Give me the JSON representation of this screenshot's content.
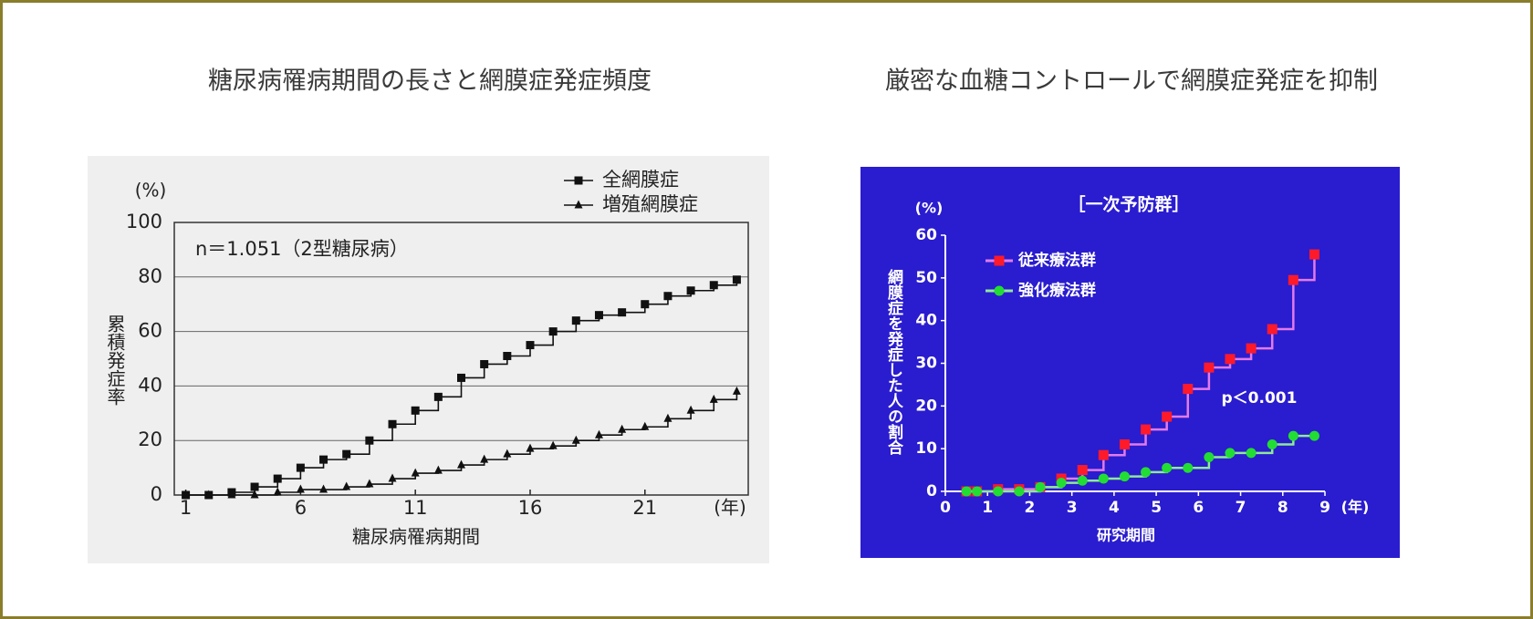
{
  "chart_data": [
    {
      "type": "step",
      "title": "糖尿病罹病期間の長さと網膜症発症頻度",
      "annotation": "n＝1.051（2型糖尿病）",
      "xlabel": "糖尿病罹病期間",
      "ylabel": "累積発症率",
      "x_unit": "(年)",
      "y_unit": "(%)",
      "x": [
        1,
        2,
        3,
        4,
        5,
        6,
        7,
        8,
        9,
        10,
        11,
        12,
        13,
        14,
        15,
        16,
        17,
        18,
        19,
        20,
        21,
        22,
        23,
        24,
        25
      ],
      "xlim": [
        0.5,
        25.5
      ],
      "xticks": [
        1,
        6,
        11,
        16,
        21
      ],
      "ylim": [
        0,
        100
      ],
      "yticks": [
        0,
        20,
        40,
        60,
        80,
        100
      ],
      "grid": true,
      "background": "#efefef",
      "text_color": "#222",
      "series": [
        {
          "name": "全網膜症",
          "color": "#111111",
          "line_color": "#111111",
          "marker": "square",
          "values": [
            0,
            0,
            1,
            3,
            6,
            10,
            13,
            15,
            20,
            26,
            31,
            36,
            43,
            48,
            51,
            55,
            60,
            64,
            66,
            67,
            70,
            73,
            75,
            77,
            79
          ]
        },
        {
          "name": "増殖網膜症",
          "color": "#111111",
          "line_color": "#111111",
          "marker": "triangle",
          "values": [
            0,
            0,
            0,
            0,
            1,
            2,
            2,
            3,
            4,
            6,
            8,
            9,
            11,
            13,
            15,
            17,
            18,
            20,
            22,
            24,
            25,
            28,
            31,
            35,
            38
          ]
        }
      ]
    },
    {
      "type": "step",
      "title": "厳密な血糖コントロールで網膜症発症を抑制",
      "subtitle": "［一次予防群］",
      "annotation": "p＜0.001",
      "xlabel": "研究期間",
      "ylabel": "網膜症を発症した人の割合",
      "x_unit": "(年)",
      "y_unit": "(%)",
      "x": [
        0.5,
        0.75,
        1.25,
        1.75,
        2.25,
        2.75,
        3.25,
        3.75,
        4.25,
        4.75,
        5.25,
        5.75,
        6.25,
        6.75,
        7.25,
        7.75,
        8.25,
        8.75
      ],
      "xlim": [
        0,
        9
      ],
      "xticks": [
        0,
        1,
        2,
        3,
        4,
        5,
        6,
        7,
        8,
        9
      ],
      "ylim": [
        0,
        60
      ],
      "yticks": [
        0,
        10,
        20,
        30,
        40,
        50,
        60
      ],
      "grid": false,
      "background": "#2a1ccf",
      "text_color": "#ffffff",
      "series": [
        {
          "name": "従来療法群",
          "color": "#ff1a2a",
          "line_color": "#e27ae8",
          "marker": "square",
          "values": [
            0,
            0,
            0.5,
            0.5,
            1,
            3,
            5,
            8.5,
            11,
            14.5,
            17.5,
            24,
            29,
            31,
            33.5,
            38,
            49.5,
            55.5
          ]
        },
        {
          "name": "強化療法群",
          "color": "#22dd33",
          "line_color": "#8ee89a",
          "marker": "circle",
          "values": [
            0,
            0,
            0,
            0,
            1,
            2,
            2.5,
            3,
            3.5,
            4.5,
            5.5,
            5.5,
            8,
            9,
            9,
            11,
            13,
            13
          ]
        }
      ]
    }
  ]
}
